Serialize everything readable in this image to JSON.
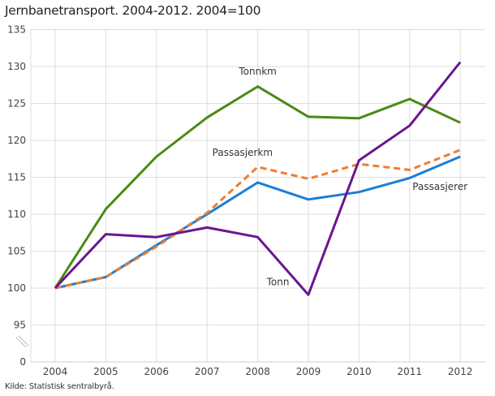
{
  "title": "Jernbanetransport. 2004-2012. 2004=100",
  "source": "Kilde: Statistisk sentralbyrå.",
  "chart_data": {
    "type": "line",
    "title": "Jernbanetransport. 2004-2012. 2004=100",
    "xlabel": "",
    "ylabel": "",
    "x": [
      "2004",
      "2005",
      "2006",
      "2007",
      "2008",
      "2009",
      "2010",
      "2011",
      "2012"
    ],
    "yticks": [
      "0",
      "95",
      "100",
      "105",
      "110",
      "115",
      "120",
      "125",
      "130",
      "135"
    ],
    "ylim": [
      95,
      135
    ],
    "axis_break": "y-axis broken between 0 and 95",
    "grid": true,
    "legend": "inline labels",
    "series": [
      {
        "name": "Tonnkm",
        "color": "#4a8a14",
        "style": "solid",
        "values": [
          100,
          110.7,
          117.8,
          123.1,
          127.3,
          123.2,
          123.0,
          125.6,
          122.4
        ],
        "label_pos": [
          2008,
          128.9
        ]
      },
      {
        "name": "Passasjerkm",
        "color": "#ee7d30",
        "style": "dashed",
        "values": [
          100,
          101.5,
          105.6,
          110.2,
          116.4,
          114.8,
          116.8,
          116.0,
          118.7
        ],
        "label_pos": [
          2007.7,
          117.9
        ]
      },
      {
        "name": "Passasjerer",
        "color": "#1a7ed6",
        "style": "solid",
        "values": [
          100,
          101.5,
          105.8,
          110.0,
          114.3,
          112.0,
          113.0,
          114.9,
          117.8
        ],
        "label_pos": [
          2011.6,
          113.3
        ]
      },
      {
        "name": "Tonn",
        "color": "#6b1590",
        "style": "solid",
        "values": [
          100,
          107.3,
          106.9,
          108.2,
          106.9,
          99.1,
          117.3,
          122.0,
          130.6
        ],
        "label_pos": [
          2008.4,
          100.4
        ]
      }
    ]
  }
}
